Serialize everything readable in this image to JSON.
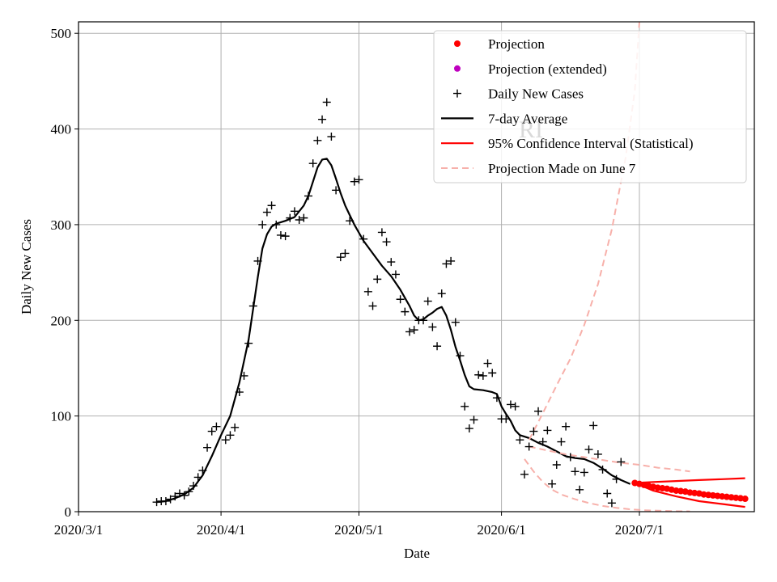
{
  "chart_data": {
    "type": "scatter",
    "title": "",
    "watermark": "RI",
    "xlabel": "Date",
    "ylabel": "Daily New Cases",
    "x_origin": "2020-03-01",
    "x_unit": "days since 2020-03-01",
    "xlim": [
      0,
      147
    ],
    "ylim": [
      0,
      512
    ],
    "xticks": [
      {
        "day": 0,
        "label": "2020/3/1"
      },
      {
        "day": 31,
        "label": "2020/4/1"
      },
      {
        "day": 61,
        "label": "2020/5/1"
      },
      {
        "day": 92,
        "label": "2020/6/1"
      },
      {
        "day": 122,
        "label": "2020/7/1"
      }
    ],
    "yticks": [
      0,
      100,
      200,
      300,
      400,
      500
    ],
    "grid": true,
    "legend_position": "top-right",
    "colors": {
      "projection": "#ff0000",
      "projection_extended": "#bf00bf",
      "daily": "#000000",
      "avg": "#000000",
      "ci": "#ff0000",
      "june7": "#f7b0aa"
    },
    "legend": [
      {
        "key": "projection",
        "label": "Projection",
        "marker": "dot"
      },
      {
        "key": "projection_extended",
        "label": "Projection (extended)",
        "marker": "dot"
      },
      {
        "key": "daily",
        "label": "Daily New Cases",
        "marker": "plus"
      },
      {
        "key": "avg",
        "label": "7-day Average",
        "marker": "line"
      },
      {
        "key": "ci",
        "label": "95% Confidence Interval (Statistical)",
        "marker": "line"
      },
      {
        "key": "june7",
        "label": "Projection Made on June 7",
        "marker": "dash"
      }
    ],
    "series": [
      {
        "name": "Daily New Cases",
        "key": "daily",
        "points": [
          [
            17,
            10
          ],
          [
            18,
            11
          ],
          [
            19,
            11
          ],
          [
            20,
            13
          ],
          [
            21,
            16
          ],
          [
            22,
            19
          ],
          [
            23,
            17
          ],
          [
            24,
            21
          ],
          [
            25,
            27
          ],
          [
            26,
            36
          ],
          [
            27,
            43
          ],
          [
            28,
            67
          ],
          [
            29,
            84
          ],
          [
            30,
            89
          ],
          [
            32,
            75
          ],
          [
            33,
            80
          ],
          [
            34,
            88
          ],
          [
            35,
            125
          ],
          [
            36,
            142
          ],
          [
            37,
            176
          ],
          [
            38,
            215
          ],
          [
            39,
            262
          ],
          [
            40,
            300
          ],
          [
            41,
            313
          ],
          [
            42,
            320
          ],
          [
            43,
            300
          ],
          [
            44,
            289
          ],
          [
            45,
            288
          ],
          [
            46,
            307
          ],
          [
            47,
            314
          ],
          [
            48,
            305
          ],
          [
            49,
            307
          ],
          [
            50,
            330
          ],
          [
            51,
            364
          ],
          [
            52,
            388
          ],
          [
            53,
            410
          ],
          [
            54,
            428
          ],
          [
            55,
            392
          ],
          [
            56,
            336
          ],
          [
            57,
            266
          ],
          [
            58,
            270
          ],
          [
            59,
            304
          ],
          [
            60,
            345
          ],
          [
            61,
            347
          ],
          [
            62,
            285
          ],
          [
            63,
            230
          ],
          [
            64,
            215
          ],
          [
            65,
            243
          ],
          [
            66,
            292
          ],
          [
            67,
            282
          ],
          [
            68,
            261
          ],
          [
            69,
            248
          ],
          [
            70,
            222
          ],
          [
            71,
            209
          ],
          [
            72,
            188
          ],
          [
            73,
            190
          ],
          [
            74,
            200
          ],
          [
            75,
            200
          ],
          [
            76,
            220
          ],
          [
            77,
            193
          ],
          [
            78,
            173
          ],
          [
            79,
            228
          ],
          [
            80,
            259
          ],
          [
            81,
            262
          ],
          [
            82,
            198
          ],
          [
            83,
            163
          ],
          [
            84,
            110
          ],
          [
            85,
            87
          ],
          [
            86,
            96
          ],
          [
            87,
            143
          ],
          [
            88,
            142
          ],
          [
            89,
            155
          ],
          [
            90,
            145
          ],
          [
            91,
            119
          ],
          [
            92,
            97
          ],
          [
            93,
            97
          ],
          [
            94,
            112
          ],
          [
            95,
            110
          ],
          [
            96,
            75
          ],
          [
            97,
            39
          ],
          [
            98,
            68
          ],
          [
            99,
            84
          ],
          [
            100,
            105
          ],
          [
            101,
            73
          ],
          [
            102,
            85
          ],
          [
            103,
            29
          ],
          [
            104,
            49
          ],
          [
            105,
            73
          ],
          [
            106,
            89
          ],
          [
            107,
            57
          ],
          [
            108,
            42
          ],
          [
            109,
            23
          ],
          [
            110,
            41
          ],
          [
            111,
            65
          ],
          [
            112,
            90
          ],
          [
            113,
            60
          ],
          [
            114,
            44
          ],
          [
            115,
            19
          ],
          [
            116,
            9
          ],
          [
            117,
            34
          ],
          [
            118,
            52
          ]
        ]
      },
      {
        "name": "7-day Average",
        "key": "avg",
        "points": [
          [
            17,
            10
          ],
          [
            19,
            11
          ],
          [
            21,
            14
          ],
          [
            23,
            18
          ],
          [
            25,
            25
          ],
          [
            27,
            38
          ],
          [
            29,
            58
          ],
          [
            31,
            80
          ],
          [
            33,
            100
          ],
          [
            35,
            135
          ],
          [
            37,
            180
          ],
          [
            39,
            245
          ],
          [
            40,
            275
          ],
          [
            41,
            290
          ],
          [
            42,
            298
          ],
          [
            43,
            301
          ],
          [
            45,
            304
          ],
          [
            47,
            308
          ],
          [
            49,
            320
          ],
          [
            50,
            330
          ],
          [
            51,
            345
          ],
          [
            52,
            360
          ],
          [
            53,
            368
          ],
          [
            54,
            369
          ],
          [
            55,
            362
          ],
          [
            56,
            348
          ],
          [
            57,
            333
          ],
          [
            58,
            320
          ],
          [
            59,
            310
          ],
          [
            60,
            300
          ],
          [
            62,
            283
          ],
          [
            64,
            270
          ],
          [
            66,
            257
          ],
          [
            68,
            246
          ],
          [
            70,
            232
          ],
          [
            72,
            215
          ],
          [
            73,
            205
          ],
          [
            74,
            200
          ],
          [
            75,
            201
          ],
          [
            76,
            205
          ],
          [
            77,
            208
          ],
          [
            78,
            212
          ],
          [
            79,
            214
          ],
          [
            80,
            205
          ],
          [
            81,
            190
          ],
          [
            82,
            172
          ],
          [
            83,
            158
          ],
          [
            84,
            143
          ],
          [
            85,
            131
          ],
          [
            86,
            128
          ],
          [
            88,
            127
          ],
          [
            90,
            125
          ],
          [
            91,
            123
          ],
          [
            92,
            110
          ],
          [
            93,
            102
          ],
          [
            94,
            95
          ],
          [
            95,
            85
          ],
          [
            96,
            80
          ],
          [
            98,
            77
          ],
          [
            100,
            72
          ],
          [
            101,
            70
          ],
          [
            102,
            68
          ],
          [
            104,
            63
          ],
          [
            106,
            58
          ],
          [
            108,
            56
          ],
          [
            110,
            55
          ],
          [
            112,
            51
          ],
          [
            114,
            45
          ],
          [
            116,
            38
          ],
          [
            118,
            33
          ],
          [
            120,
            29
          ]
        ]
      },
      {
        "name": "Projection",
        "key": "projection",
        "points": [
          [
            121,
            30
          ],
          [
            122,
            29
          ],
          [
            123,
            28
          ],
          [
            124,
            27
          ],
          [
            125,
            26
          ],
          [
            126,
            25
          ],
          [
            127,
            24.5
          ],
          [
            128,
            24
          ],
          [
            129,
            23
          ],
          [
            130,
            22
          ],
          [
            131,
            21.5
          ],
          [
            132,
            21
          ],
          [
            133,
            20
          ],
          [
            134,
            19.5
          ],
          [
            135,
            19
          ],
          [
            136,
            18
          ],
          [
            137,
            17.5
          ],
          [
            138,
            17
          ],
          [
            139,
            16.5
          ],
          [
            140,
            16
          ],
          [
            141,
            15.5
          ],
          [
            142,
            15
          ],
          [
            143,
            14.5
          ],
          [
            144,
            14
          ],
          [
            145,
            13.5
          ]
        ]
      },
      {
        "name": "95% CI Upper",
        "key": "ci",
        "points": [
          [
            121,
            30
          ],
          [
            125,
            31
          ],
          [
            130,
            32
          ],
          [
            135,
            33
          ],
          [
            140,
            34
          ],
          [
            145,
            35
          ]
        ]
      },
      {
        "name": "95% CI Lower",
        "key": "ci",
        "points": [
          [
            121,
            30
          ],
          [
            125,
            22
          ],
          [
            130,
            16
          ],
          [
            135,
            11
          ],
          [
            140,
            8
          ],
          [
            145,
            5
          ]
        ]
      },
      {
        "name": "June 7 Projection Center",
        "key": "june7",
        "points": [
          [
            98,
            68
          ],
          [
            102,
            64
          ],
          [
            106,
            60
          ],
          [
            110,
            57
          ],
          [
            114,
            54
          ],
          [
            118,
            51
          ],
          [
            122,
            49
          ],
          [
            126,
            46
          ],
          [
            130,
            44
          ],
          [
            133,
            42
          ]
        ]
      },
      {
        "name": "June 7 Upper Bound",
        "key": "june7",
        "points": [
          [
            98,
            75
          ],
          [
            101,
            103
          ],
          [
            104,
            132
          ],
          [
            107,
            160
          ],
          [
            110,
            195
          ],
          [
            113,
            238
          ],
          [
            116,
            295
          ],
          [
            119,
            370
          ],
          [
            121,
            440
          ],
          [
            122,
            512
          ]
        ]
      },
      {
        "name": "June 7 Lower Bound",
        "key": "june7",
        "points": [
          [
            97,
            55
          ],
          [
            99,
            42
          ],
          [
            101,
            31
          ],
          [
            103,
            23
          ],
          [
            105,
            18
          ],
          [
            108,
            13
          ],
          [
            111,
            9
          ],
          [
            114,
            6
          ],
          [
            117,
            4
          ],
          [
            120,
            2.5
          ],
          [
            123,
            1.5
          ],
          [
            126,
            1
          ],
          [
            130,
            0.5
          ],
          [
            133,
            0.3
          ]
        ]
      }
    ]
  }
}
